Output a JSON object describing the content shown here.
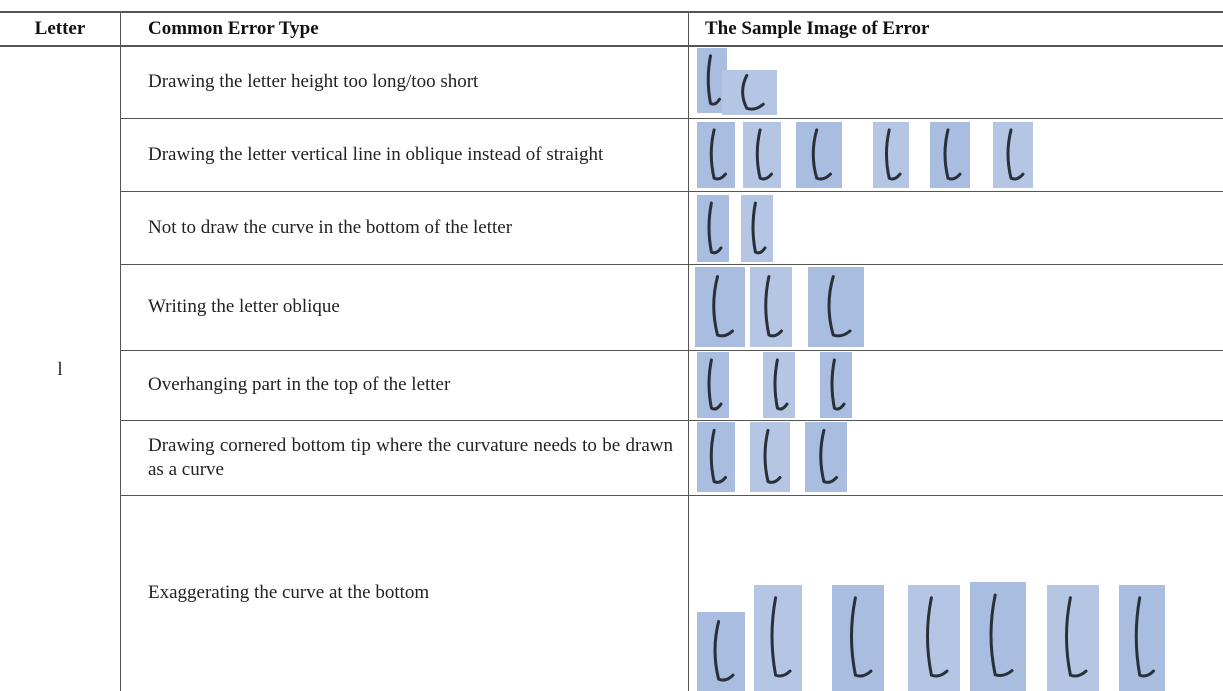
{
  "header": {
    "columns": [
      "Letter",
      "Common Error Type",
      "The Sample Image of Error"
    ]
  },
  "table": {
    "letter": "l",
    "rows": [
      "Drawing the letter height too long/too short",
      "Drawing the letter vertical line in oblique instead of straight",
      "Not to draw the curve in the bottom of the letter",
      "Writing the letter oblique",
      "Overhanging part in the top of the letter",
      "Drawing cornered bottom tip where the curvature needs to be drawn as a curve",
      "Exaggerating the curve at the bottom"
    ]
  }
}
